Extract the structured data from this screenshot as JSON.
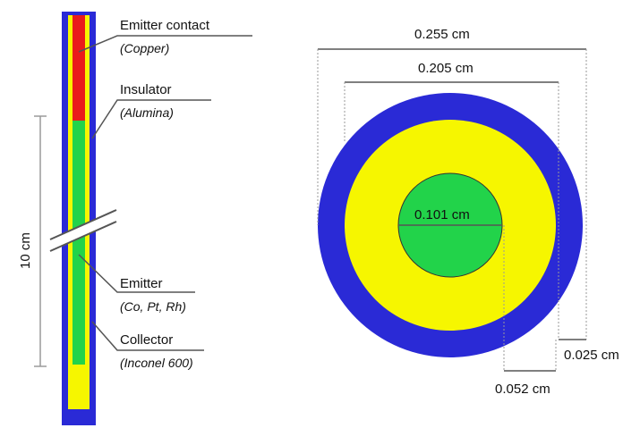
{
  "colors": {
    "collector": "#2a2ad6",
    "insulator": "#f6f600",
    "emitter": "#22d34a",
    "contact": "#ea1b1b",
    "line": "#555555",
    "guide": "#9a9a9a"
  },
  "probe": {
    "length_label": "10 cm",
    "components": [
      {
        "name": "Emitter contact",
        "material": "(Copper)"
      },
      {
        "name": "Insulator",
        "material": "(Alumina)"
      },
      {
        "name": "Emitter",
        "material": "(Co, Pt, Rh)"
      },
      {
        "name": "Collector",
        "material": "(Inconel 600)"
      }
    ]
  },
  "cross_section": {
    "outer_diameter": "0.255 cm",
    "insulator_diameter": "0.205 cm",
    "emitter_diameter": "0.101 cm",
    "collector_thickness": "0.025 cm",
    "insulator_thickness": "0.052 cm"
  }
}
